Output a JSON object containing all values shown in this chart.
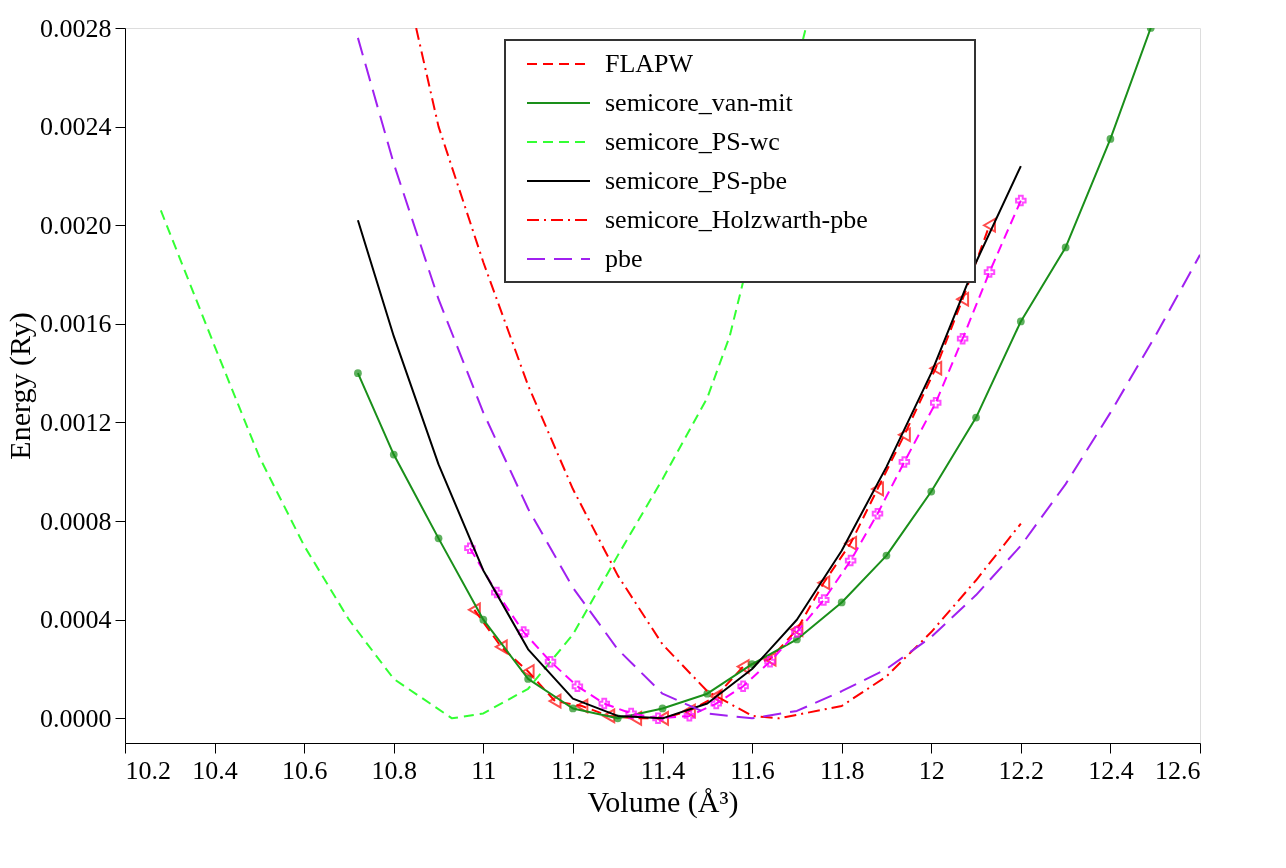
{
  "chart_data": {
    "type": "line",
    "xlabel": "Volume (Å³)",
    "ylabel": "Energy (Ry)",
    "xlim": [
      10.2,
      12.6
    ],
    "xticks": [
      10.2,
      10.4,
      10.6,
      10.8,
      11,
      11.2,
      11.4,
      11.6,
      11.8,
      12,
      12.2,
      12.4,
      12.6
    ],
    "ylim": [
      -0.0001,
      0.0028
    ],
    "yticks": [
      {
        "value": 0,
        "label": "0.0000"
      },
      {
        "value": 0.0004,
        "label": "0.0004"
      },
      {
        "value": 0.0008,
        "label": "0.0008"
      },
      {
        "value": 0.0012,
        "label": "0.0012"
      },
      {
        "value": 0.0016,
        "label": "0.0016"
      },
      {
        "value": 0.002,
        "label": "0.0020"
      },
      {
        "value": 0.0024,
        "label": "0.0024"
      },
      {
        "value": 0.0028,
        "label": "0.0028"
      }
    ],
    "grid": false,
    "legend": "top",
    "series": [
      {
        "name": "FLAPW",
        "color": "#ff0000",
        "marker": "triangle",
        "line_style": "dashed",
        "x": [
          10.98,
          11.04,
          11.1,
          11.16,
          11.22,
          11.28,
          11.34,
          11.4,
          11.46,
          11.52,
          11.58,
          11.64,
          11.7,
          11.76,
          11.82,
          11.88,
          11.94,
          12.01,
          12.07,
          12.13
        ],
        "values": [
          0.00044,
          0.00029,
          0.00019,
          7e-05,
          5e-05,
          1e-05,
          0.0,
          0.0,
          3e-05,
          9e-05,
          0.00021,
          0.00024,
          0.00036,
          0.00055,
          0.00071,
          0.00093,
          0.00115,
          0.00142,
          0.0017,
          0.002
        ]
      },
      {
        "name": "semicore_van-mit",
        "color": "#1a8f1a",
        "marker": "circle",
        "line_style": "solid",
        "x": [
          10.72,
          10.8,
          10.9,
          11.0,
          11.1,
          11.2,
          11.3,
          11.4,
          11.5,
          11.6,
          11.7,
          11.8,
          11.9,
          12.0,
          12.1,
          12.2,
          12.3,
          12.4,
          12.49
        ],
        "values": [
          0.0014,
          0.00107,
          0.00073,
          0.0004,
          0.00016,
          4e-05,
          0.0,
          4e-05,
          0.0001,
          0.00022,
          0.00032,
          0.00047,
          0.00066,
          0.00092,
          0.00122,
          0.00161,
          0.00191,
          0.00235,
          0.0028
        ]
      },
      {
        "name": "semicore_PS-wc",
        "color": "#33ff33",
        "marker": "none",
        "line_style": "dashed",
        "x": [
          10.28,
          10.4,
          10.5,
          10.6,
          10.7,
          10.8,
          10.93,
          11.0,
          11.1,
          11.2,
          11.3,
          11.4,
          11.5,
          11.55,
          11.72
        ],
        "values": [
          0.00206,
          0.00151,
          0.00106,
          0.0007,
          0.0004,
          0.00016,
          0.0,
          2e-05,
          0.00012,
          0.00034,
          0.00066,
          0.00097,
          0.0013,
          0.00155,
          0.0028
        ]
      },
      {
        "color": "#ff00ff",
        "marker": "cross",
        "line_style": "dashed",
        "x": [
          10.97,
          11.03,
          11.09,
          11.15,
          11.21,
          11.27,
          11.33,
          11.39,
          11.46,
          11.52,
          11.58,
          11.64,
          11.7,
          11.76,
          11.82,
          11.88,
          11.94,
          12.01,
          12.07,
          12.13,
          12.2
        ],
        "values": [
          0.00069,
          0.00051,
          0.00035,
          0.00023,
          0.00013,
          6e-05,
          2e-05,
          0.0,
          1e-05,
          6e-05,
          0.00013,
          0.00023,
          0.00035,
          0.00048,
          0.00064,
          0.00083,
          0.00104,
          0.00128,
          0.00154,
          0.00181,
          0.0021
        ]
      },
      {
        "name": "semicore_PS-pbe",
        "color": "#000000",
        "marker": "none",
        "line_style": "solid",
        "x": [
          10.72,
          10.8,
          10.9,
          11.0,
          11.1,
          11.2,
          11.3,
          11.4,
          11.5,
          11.6,
          11.7,
          11.8,
          11.9,
          12.0,
          12.1,
          12.2
        ],
        "values": [
          0.00202,
          0.00155,
          0.00103,
          0.0006,
          0.00028,
          8e-05,
          1e-05,
          0.0,
          6e-05,
          0.0002,
          0.0004,
          0.00068,
          0.00102,
          0.0014,
          0.00185,
          0.00224
        ]
      },
      {
        "name": "semicore_Holzwarth-pbe",
        "color": "#ff0000",
        "marker": "none",
        "line_style": "dashdot",
        "x": [
          10.85,
          10.9,
          11.0,
          11.1,
          11.2,
          11.3,
          11.4,
          11.5,
          11.6,
          11.66,
          11.8,
          11.9,
          12.0,
          12.1,
          12.2
        ],
        "values": [
          0.0028,
          0.0024,
          0.00185,
          0.00135,
          0.00093,
          0.00058,
          0.0003,
          0.00011,
          1e-05,
          0.0,
          5e-05,
          0.00017,
          0.00035,
          0.00056,
          0.00079
        ]
      },
      {
        "name": "pbe",
        "color": "#a020f0",
        "marker": "none",
        "line_style": "longdash",
        "x": [
          10.72,
          10.8,
          10.9,
          11.0,
          11.1,
          11.2,
          11.3,
          11.4,
          11.5,
          11.6,
          11.7,
          11.8,
          11.9,
          12.0,
          12.1,
          12.2,
          12.3,
          12.4,
          12.5,
          12.6
        ],
        "values": [
          0.00276,
          0.00225,
          0.0017,
          0.00124,
          0.00085,
          0.00053,
          0.00028,
          0.0001,
          2e-05,
          0.0,
          3e-05,
          0.00011,
          0.0002,
          0.00033,
          0.0005,
          0.0007,
          0.00095,
          0.00124,
          0.00155,
          0.00188
        ]
      }
    ]
  }
}
